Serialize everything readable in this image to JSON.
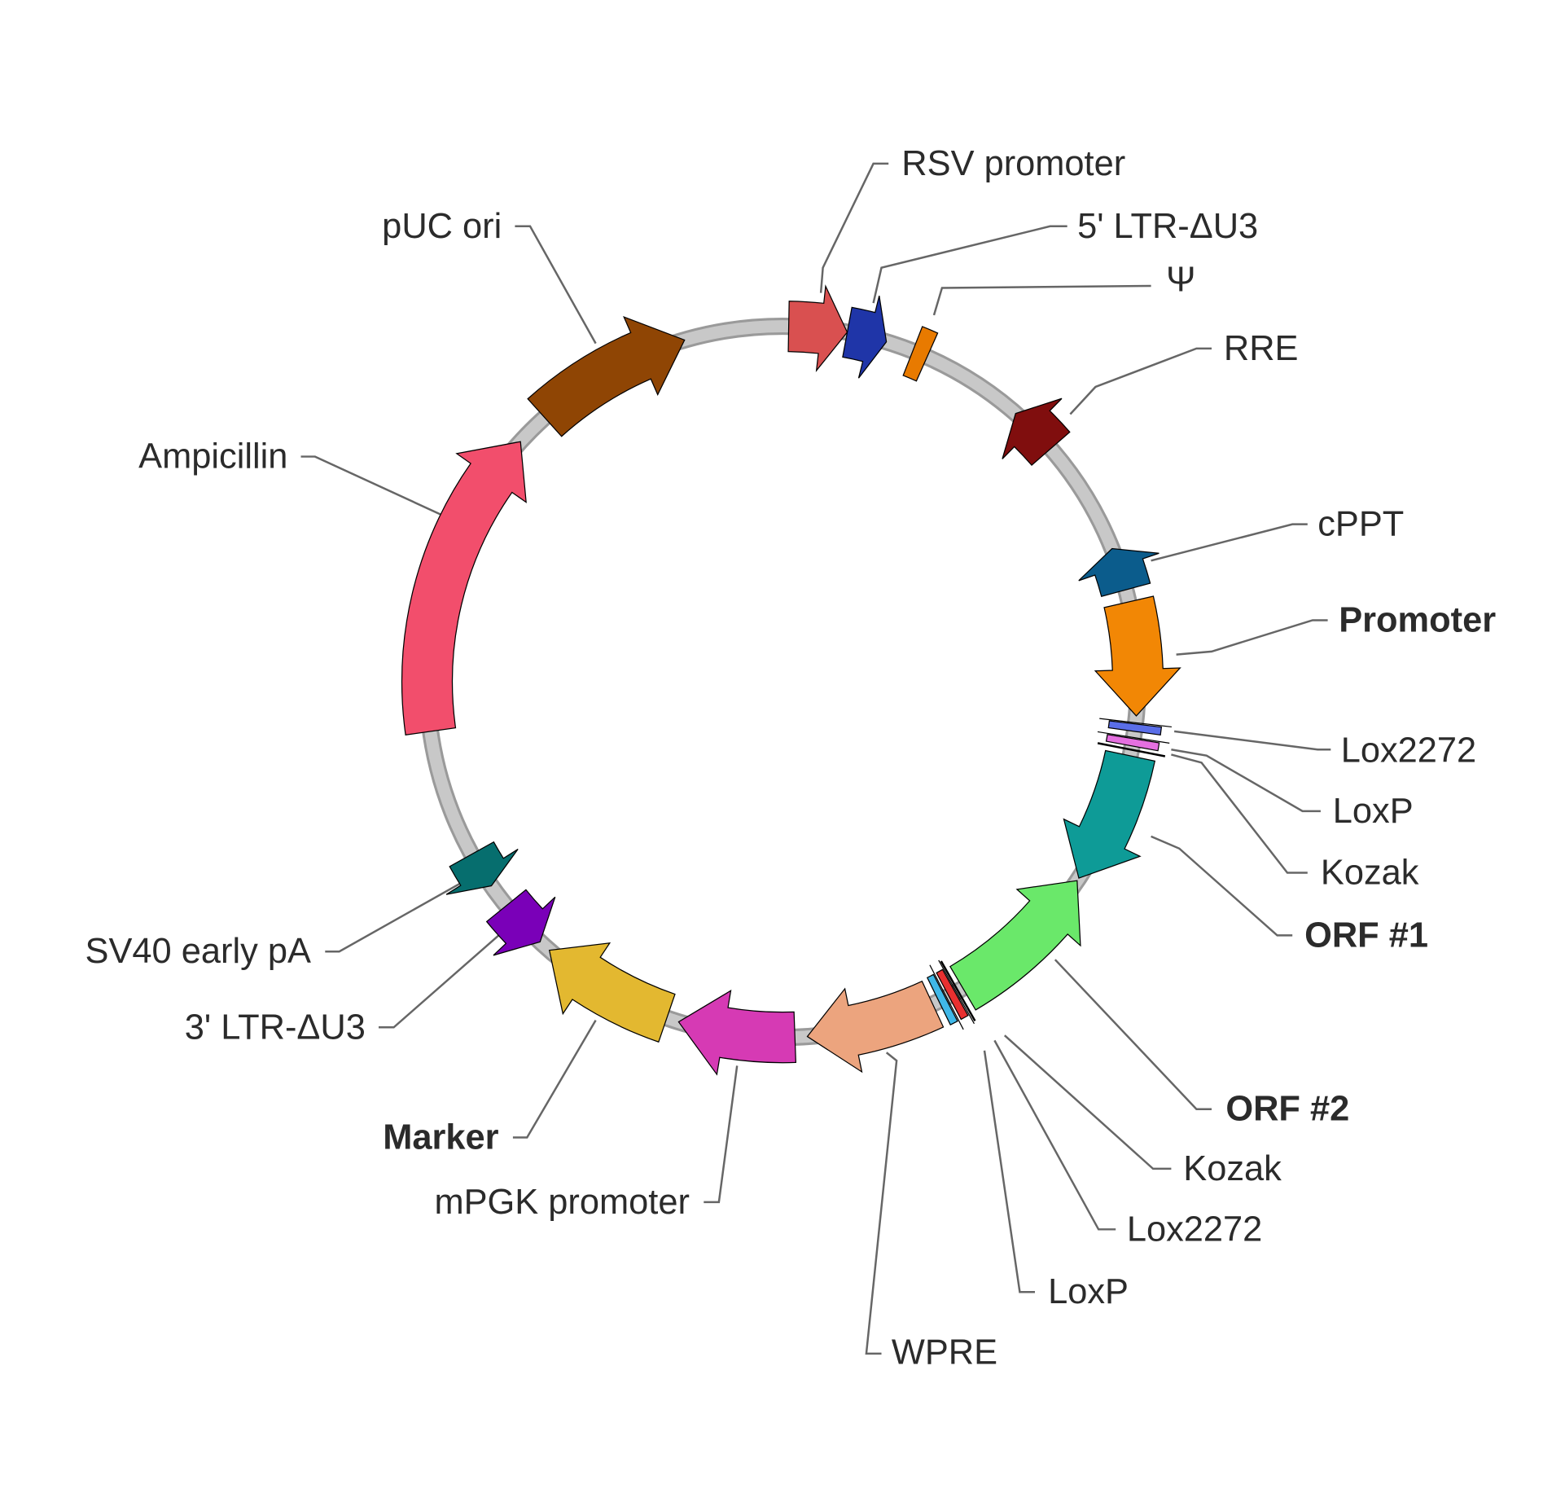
{
  "backbone": {
    "fill": "#c8c8c8",
    "edge": "#9a9a9a"
  },
  "features": [
    {
      "label": "RSV promoter",
      "color": "#d95050",
      "bold": false
    },
    {
      "label": "5' LTR-ΔU3",
      "color": "#1f35a8",
      "bold": false
    },
    {
      "label": "Ψ",
      "color": "#e87a00",
      "bold": false
    },
    {
      "label": "RRE",
      "color": "#800e0e",
      "bold": false
    },
    {
      "label": "cPPT",
      "color": "#0b5c8c",
      "bold": false
    },
    {
      "label": "Promoter",
      "color": "#f28705",
      "bold": true
    },
    {
      "label": "Lox2272",
      "color": "#5a6ee8",
      "bold": false
    },
    {
      "label": "LoxP",
      "color": "#e570e0",
      "bold": false
    },
    {
      "label": "Kozak",
      "color": "#000000",
      "bold": false
    },
    {
      "label": "ORF #1",
      "color": "#0e9b97",
      "bold": true
    },
    {
      "label": "ORF #2",
      "color": "#6ae86a",
      "bold": true
    },
    {
      "label": "Kozak",
      "color": "#000000",
      "bold": false
    },
    {
      "label": "Lox2272",
      "color": "#e83030",
      "bold": false
    },
    {
      "label": "LoxP",
      "color": "#40b8e8",
      "bold": false
    },
    {
      "label": "WPRE",
      "color": "#eca47e",
      "bold": false
    },
    {
      "label": "mPGK promoter",
      "color": "#d63ab4",
      "bold": false
    },
    {
      "label": "Marker",
      "color": "#e3b830",
      "bold": true
    },
    {
      "label": "3' LTR-ΔU3",
      "color": "#7a00b8",
      "bold": false
    },
    {
      "label": "SV40 early pA",
      "color": "#066e6e",
      "bold": false
    },
    {
      "label": "Ampicillin",
      "color": "#f24e6c",
      "bold": false
    },
    {
      "label": "pUC ori",
      "color": "#8f4504",
      "bold": false
    }
  ]
}
